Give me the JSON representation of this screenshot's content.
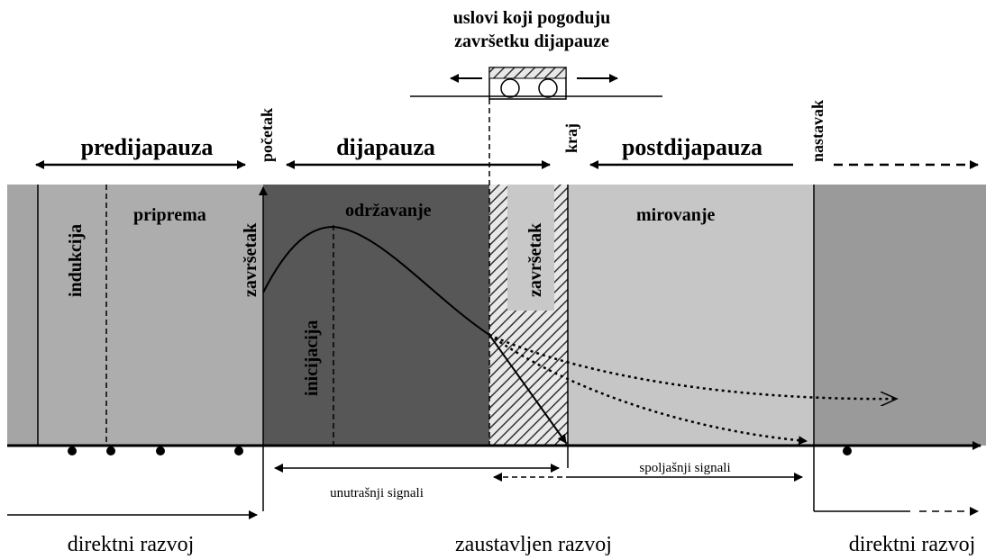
{
  "header": {
    "lines": [
      "uslovi koji pogoduju",
      "završetku dijapauze"
    ]
  },
  "phases": {
    "predijapauza": "predijapauza",
    "pocetak": "početak",
    "dijapauza": "dijapauza",
    "kraj": "kraj",
    "postdijapauza": "postdijapauza",
    "nastavak": "nastavak"
  },
  "stages": {
    "indukcija": "indukcija",
    "priprema": "priprema",
    "zavrsetak1": "završetak",
    "odrzavanje": "održavanje",
    "zavrsetak2": "završetak",
    "mirovanje": "mirovanje",
    "inicijacija": "inicijacija"
  },
  "signals": {
    "internal": "unutrašnji signali",
    "external": "spoljašnji signali"
  },
  "bottom": {
    "left": "direktni razvoj",
    "middle": "zaustavljen razvoj",
    "right": "direktni razvoj"
  }
}
